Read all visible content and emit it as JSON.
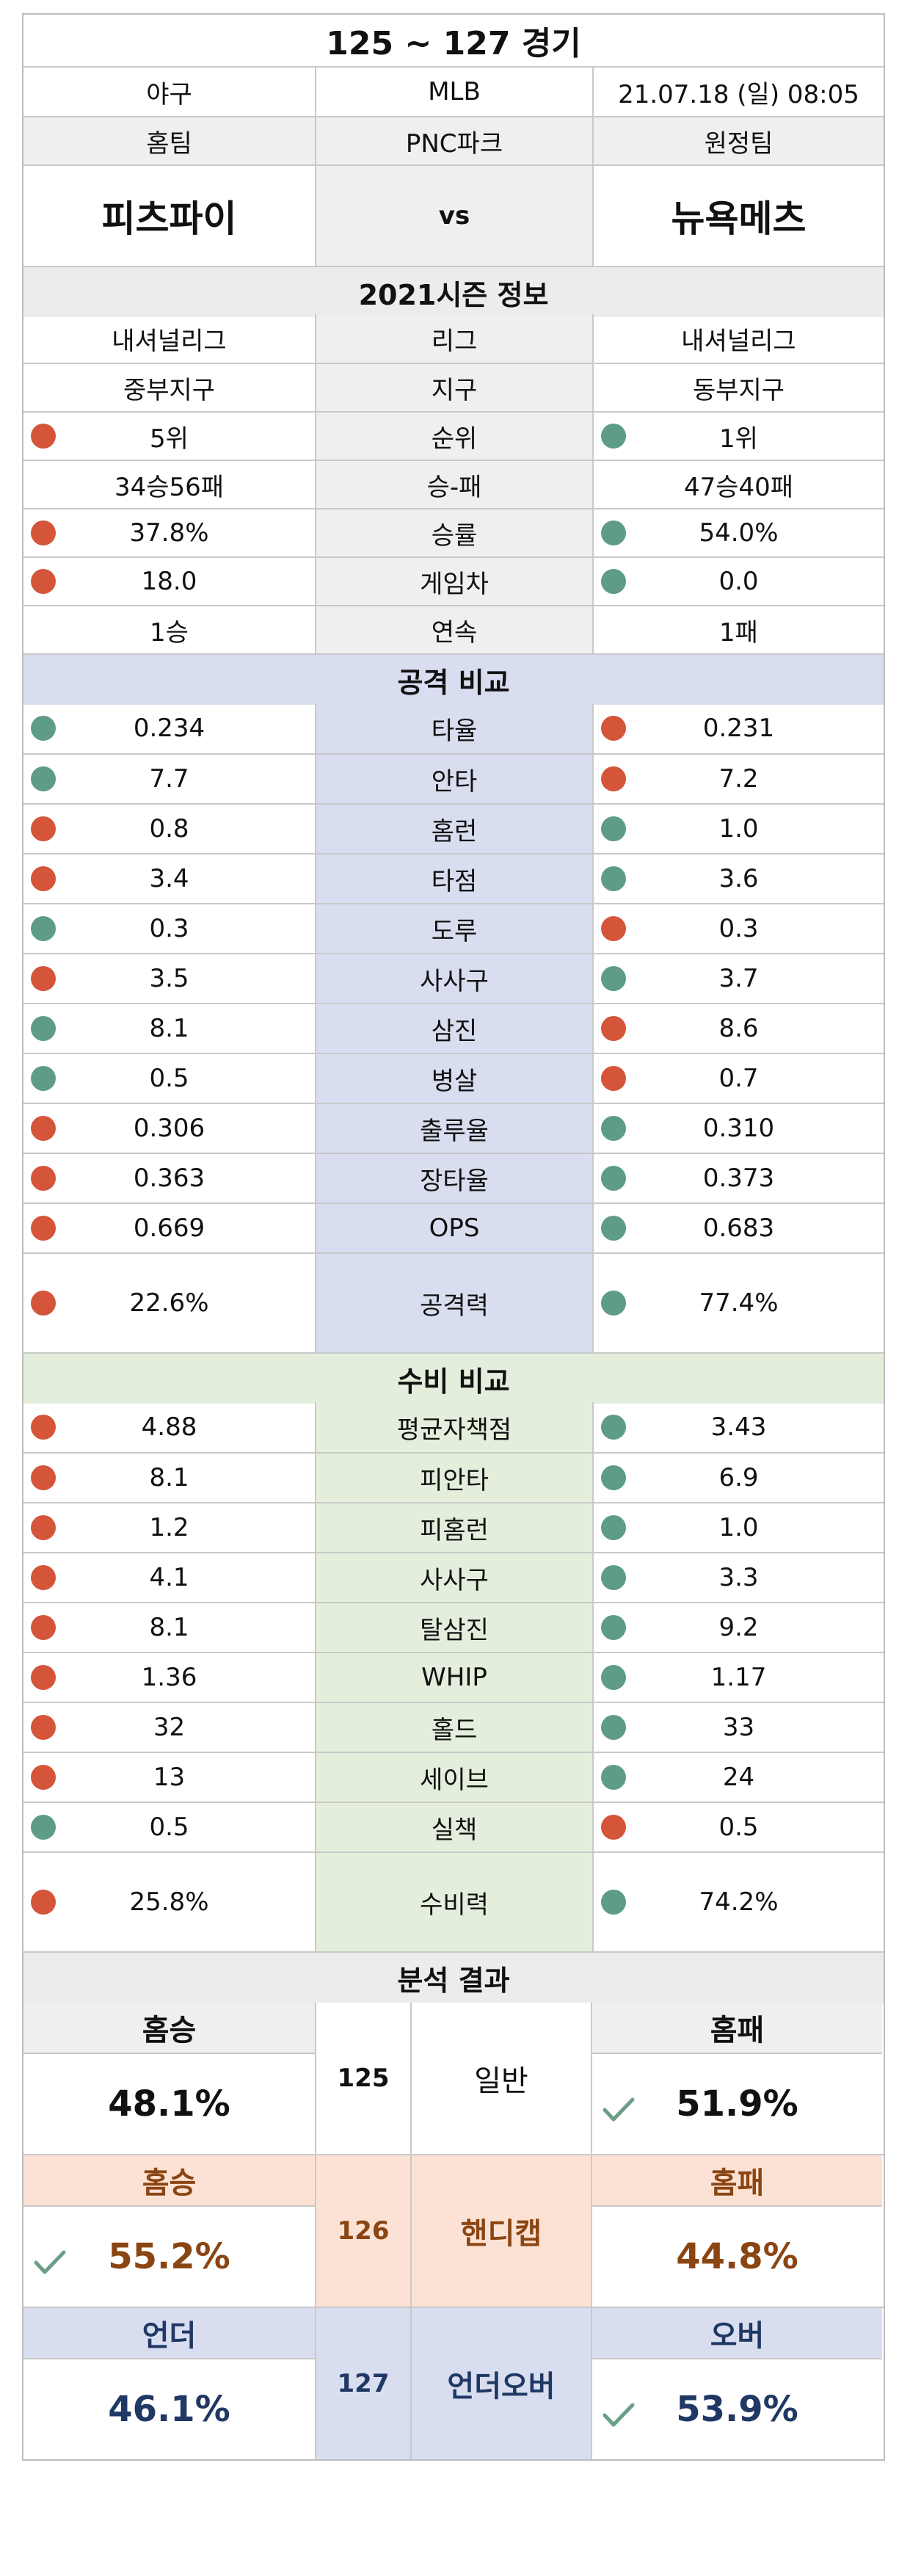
{
  "header": {
    "title": "125 ~ 127 경기",
    "sport": "야구",
    "league": "MLB",
    "datetime": "21.07.18 (일) 08:05",
    "home_label": "홈팀",
    "venue": "PNC파크",
    "away_label": "원정팀",
    "home_team": "피츠파이",
    "vs": "vs",
    "away_team": "뉴욕메츠"
  },
  "season": {
    "title": "2021시즌 정보",
    "rows": [
      {
        "home": "내셔널리그",
        "label": "리그",
        "away": "내셔널리그",
        "home_dot": "",
        "away_dot": ""
      },
      {
        "home": "중부지구",
        "label": "지구",
        "away": "동부지구",
        "home_dot": "",
        "away_dot": ""
      },
      {
        "home": "5위",
        "label": "순위",
        "away": "1위",
        "home_dot": "red",
        "away_dot": "green"
      },
      {
        "home": "34승56패",
        "label": "승-패",
        "away": "47승40패",
        "home_dot": "",
        "away_dot": ""
      },
      {
        "home": "37.8%",
        "label": "승률",
        "away": "54.0%",
        "home_dot": "red",
        "away_dot": "green"
      },
      {
        "home": "18.0",
        "label": "게임차",
        "away": "0.0",
        "home_dot": "red",
        "away_dot": "green"
      },
      {
        "home": "1승",
        "label": "연속",
        "away": "1패",
        "home_dot": "",
        "away_dot": ""
      }
    ]
  },
  "offense": {
    "title": "공격 비교",
    "rows": [
      {
        "home": "0.234",
        "label": "타율",
        "away": "0.231",
        "home_dot": "green",
        "away_dot": "red"
      },
      {
        "home": "7.7",
        "label": "안타",
        "away": "7.2",
        "home_dot": "green",
        "away_dot": "red"
      },
      {
        "home": "0.8",
        "label": "홈런",
        "away": "1.0",
        "home_dot": "red",
        "away_dot": "green"
      },
      {
        "home": "3.4",
        "label": "타점",
        "away": "3.6",
        "home_dot": "red",
        "away_dot": "green"
      },
      {
        "home": "0.3",
        "label": "도루",
        "away": "0.3",
        "home_dot": "green",
        "away_dot": "red"
      },
      {
        "home": "3.5",
        "label": "사사구",
        "away": "3.7",
        "home_dot": "red",
        "away_dot": "green"
      },
      {
        "home": "8.1",
        "label": "삼진",
        "away": "8.6",
        "home_dot": "green",
        "away_dot": "red"
      },
      {
        "home": "0.5",
        "label": "병살",
        "away": "0.7",
        "home_dot": "green",
        "away_dot": "red"
      },
      {
        "home": "0.306",
        "label": "출루율",
        "away": "0.310",
        "home_dot": "red",
        "away_dot": "green"
      },
      {
        "home": "0.363",
        "label": "장타율",
        "away": "0.373",
        "home_dot": "red",
        "away_dot": "green"
      },
      {
        "home": "0.669",
        "label": "OPS",
        "away": "0.683",
        "home_dot": "red",
        "away_dot": "green"
      },
      {
        "home": "22.6%",
        "label": "공격력",
        "away": "77.4%",
        "home_dot": "red",
        "away_dot": "green",
        "tall": true
      }
    ]
  },
  "defense": {
    "title": "수비 비교",
    "rows": [
      {
        "home": "4.88",
        "label": "평균자책점",
        "away": "3.43",
        "home_dot": "red",
        "away_dot": "green"
      },
      {
        "home": "8.1",
        "label": "피안타",
        "away": "6.9",
        "home_dot": "red",
        "away_dot": "green"
      },
      {
        "home": "1.2",
        "label": "피홈런",
        "away": "1.0",
        "home_dot": "red",
        "away_dot": "green"
      },
      {
        "home": "4.1",
        "label": "사사구",
        "away": "3.3",
        "home_dot": "red",
        "away_dot": "green"
      },
      {
        "home": "8.1",
        "label": "탈삼진",
        "away": "9.2",
        "home_dot": "red",
        "away_dot": "green"
      },
      {
        "home": "1.36",
        "label": "WHIP",
        "away": "1.17",
        "home_dot": "red",
        "away_dot": "green"
      },
      {
        "home": "32",
        "label": "홀드",
        "away": "33",
        "home_dot": "red",
        "away_dot": "green"
      },
      {
        "home": "13",
        "label": "세이브",
        "away": "24",
        "home_dot": "red",
        "away_dot": "green"
      },
      {
        "home": "0.5",
        "label": "실책",
        "away": "0.5",
        "home_dot": "green",
        "away_dot": "red"
      },
      {
        "home": "25.8%",
        "label": "수비력",
        "away": "74.2%",
        "home_dot": "red",
        "away_dot": "green",
        "tall": true
      }
    ]
  },
  "analysis": {
    "title": "분석 결과",
    "blocks": [
      {
        "left_label": "홈승",
        "left_value": "48.1%",
        "game": "125",
        "kind": "일반",
        "right_label": "홈패",
        "right_value": "51.9%",
        "check": "right",
        "theme": "plain"
      },
      {
        "left_label": "홈승",
        "left_value": "55.2%",
        "game": "126",
        "kind": "핸디캡",
        "right_label": "홈패",
        "right_value": "44.8%",
        "check": "left",
        "theme": "orange"
      },
      {
        "left_label": "언더",
        "left_value": "46.1%",
        "game": "127",
        "kind": "언더오버",
        "right_label": "오버",
        "right_value": "53.9%",
        "check": "right",
        "theme": "blue"
      }
    ]
  },
  "colors": {
    "dot_red": "#d4553a",
    "dot_green": "#5e9c88",
    "check": "#6a9e86",
    "handicap_bg": "#fbe2d4",
    "handicap_text": "#8b4513",
    "underover_bg": "#d8deef",
    "underover_text": "#203864"
  }
}
